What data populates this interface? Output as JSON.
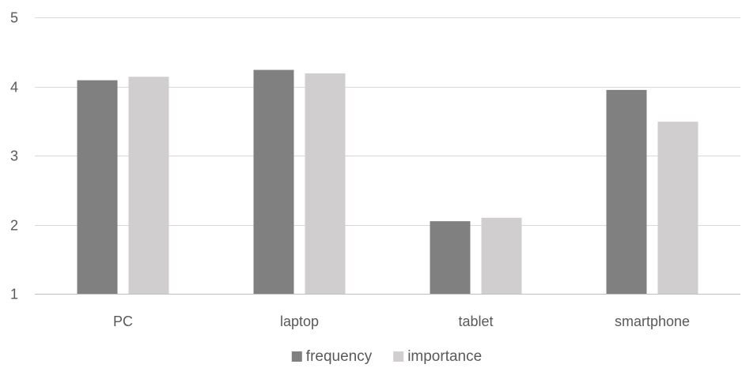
{
  "chart_data": {
    "type": "bar",
    "categories": [
      "PC",
      "laptop",
      "tablet",
      "smartphone"
    ],
    "series": [
      {
        "name": "frequency",
        "values": [
          4.09,
          4.24,
          2.05,
          3.95
        ],
        "color": "#808080"
      },
      {
        "name": "importance",
        "values": [
          4.14,
          4.19,
          2.1,
          3.49
        ],
        "color": "#d0cece"
      }
    ],
    "title": "",
    "xlabel": "",
    "ylabel": "",
    "ylim": [
      1,
      5
    ],
    "yticks": [
      "1",
      "2",
      "3",
      "4",
      "5"
    ],
    "grid": true,
    "legend": "bottom",
    "gridline_color": "#d9d9d9",
    "axis_color": "#bfbfbf"
  }
}
